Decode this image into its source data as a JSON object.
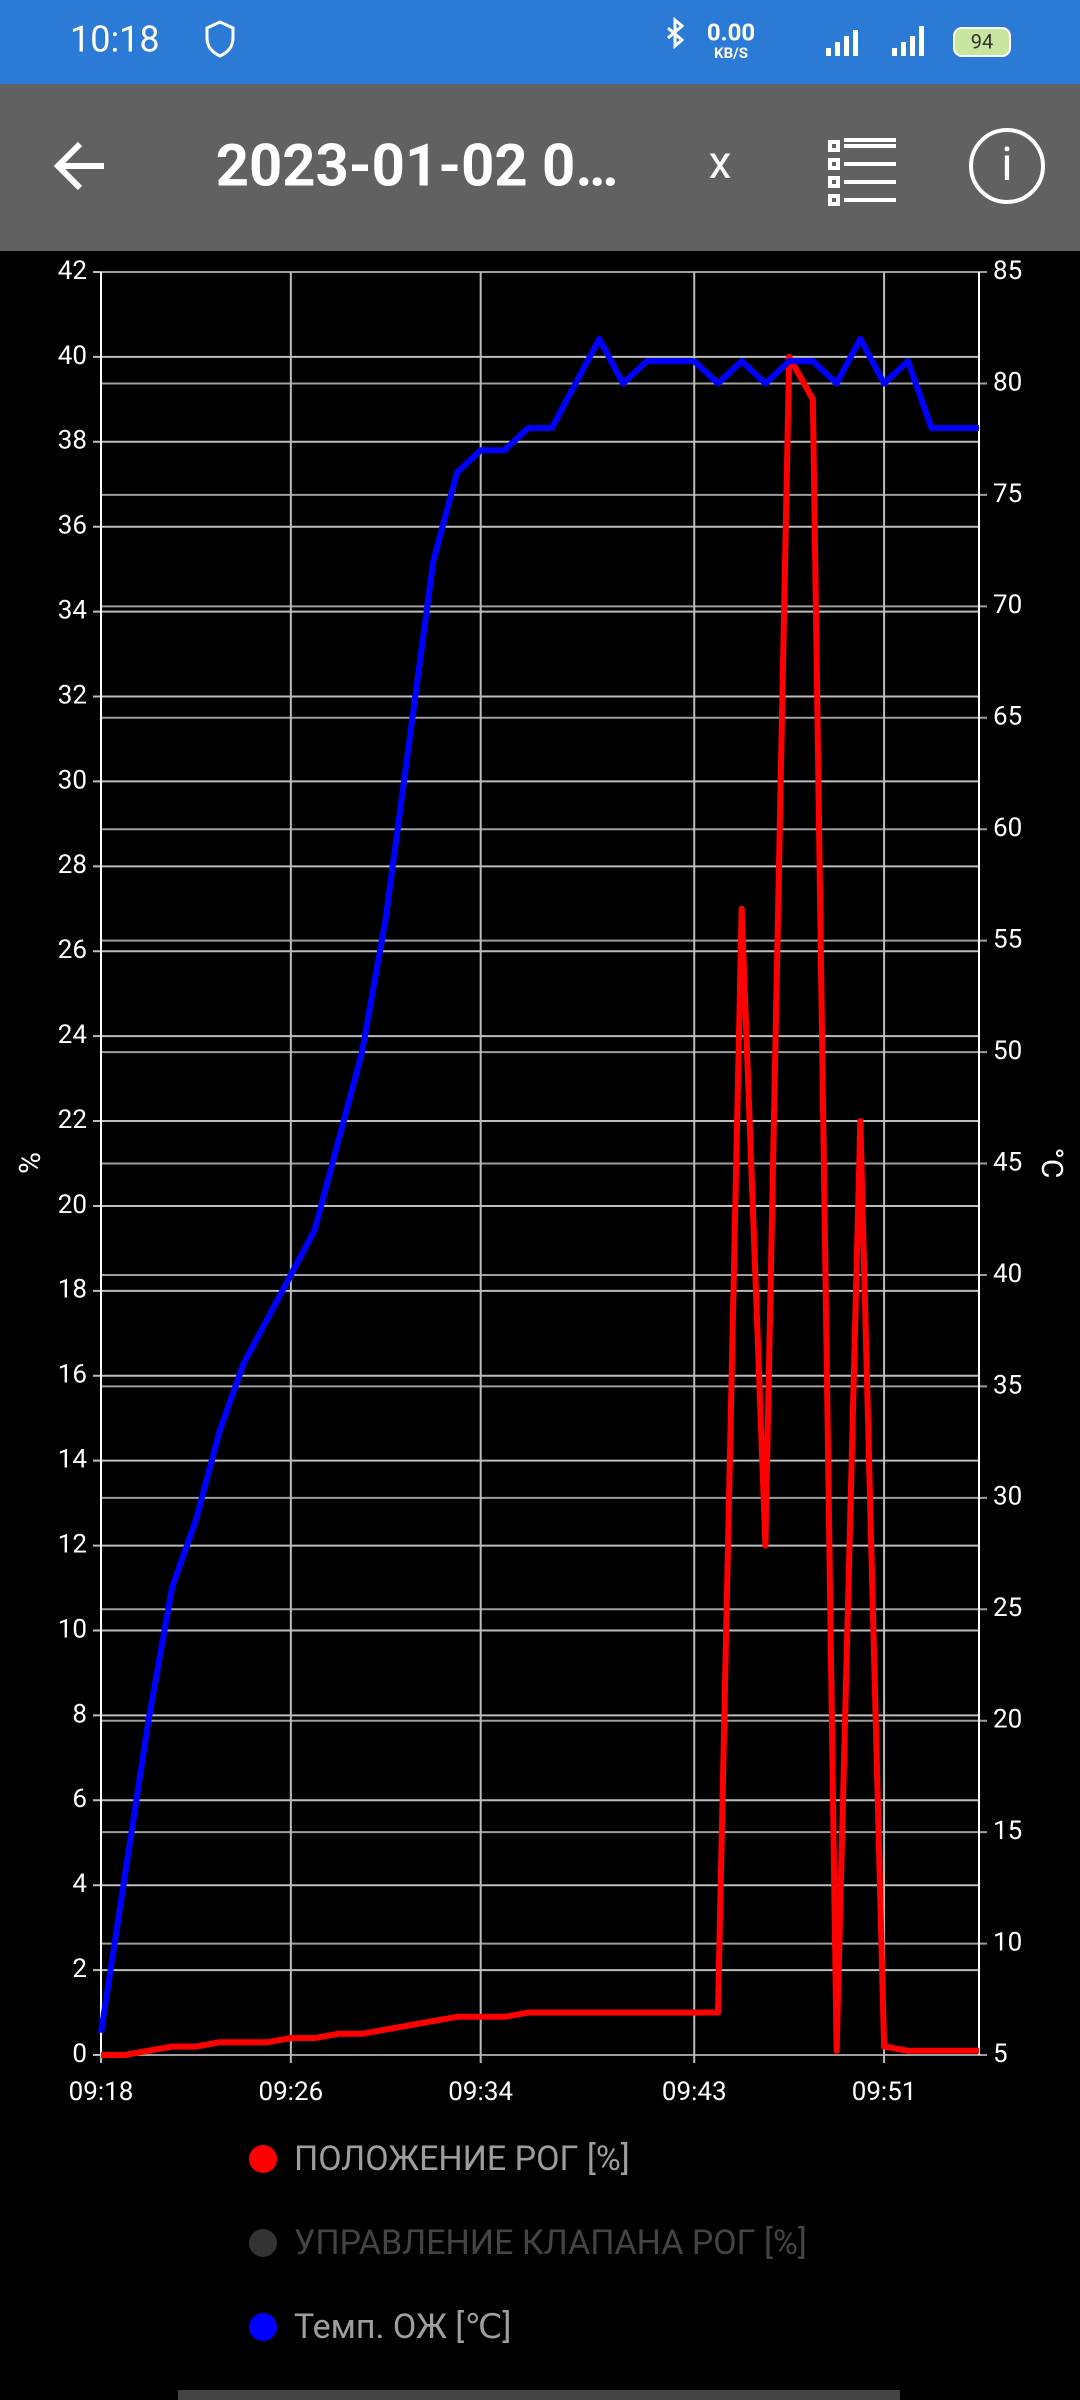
{
  "status_bar": {
    "time": "10:18",
    "speed": "0.00",
    "speed_unit": "KB/S",
    "battery": "94"
  },
  "app_bar": {
    "title": "2023-01-02 0…",
    "close": "x"
  },
  "chart_data": {
    "type": "line",
    "x": [
      "09:18",
      "09:19",
      "09:20",
      "09:21",
      "09:22",
      "09:23",
      "09:24",
      "09:25",
      "09:26",
      "09:27",
      "09:28",
      "09:29",
      "09:30",
      "09:31",
      "09:32",
      "09:33",
      "09:34",
      "09:35",
      "09:36",
      "09:37",
      "09:38",
      "09:39",
      "09:40",
      "09:41",
      "09:42",
      "09:43",
      "09:44",
      "09:45",
      "09:46",
      "09:47",
      "09:48",
      "09:49",
      "09:50",
      "09:51",
      "09:52",
      "09:53",
      "09:54",
      "09:55"
    ],
    "xlim": [
      "09:18",
      "09:55"
    ],
    "xticks": [
      "09:18",
      "09:26",
      "09:34",
      "09:43",
      "09:51"
    ],
    "ylabel": "%",
    "y2label": "°C",
    "ylim": [
      0,
      42
    ],
    "yticks": [
      0,
      2,
      4,
      6,
      8,
      10,
      12,
      14,
      16,
      18,
      20,
      22,
      24,
      26,
      28,
      30,
      32,
      34,
      36,
      38,
      40,
      42
    ],
    "y2lim": [
      5,
      85
    ],
    "y2ticks": [
      5,
      10,
      15,
      20,
      25,
      30,
      35,
      40,
      45,
      50,
      55,
      60,
      65,
      70,
      75,
      80,
      85
    ],
    "grid": true,
    "series": [
      {
        "name": "ПОЛОЖЕНИЕ РОГ [%]",
        "color": "#ff0000",
        "values": [
          0,
          0,
          0.1,
          0.2,
          0.2,
          0.3,
          0.3,
          0.3,
          0.4,
          0.4,
          0.5,
          0.5,
          0.6,
          0.7,
          0.8,
          0.9,
          0.9,
          0.9,
          1,
          1,
          1,
          1,
          1,
          1,
          1,
          1,
          1,
          27,
          12,
          40,
          39,
          0.1,
          22,
          0.2,
          0.1,
          0.1,
          0.1,
          0.1
        ]
      },
      {
        "name": "УПРАВЛЕНИЕ КЛАПАНА РОГ [%]",
        "color": "#333333",
        "values": [
          null,
          null,
          null,
          null,
          null,
          null,
          null,
          null,
          null,
          null,
          null,
          null,
          null,
          null,
          null,
          null,
          null,
          null,
          null,
          null,
          null,
          null,
          null,
          null,
          null,
          null,
          null,
          null,
          null,
          null,
          null,
          null,
          null,
          null,
          null,
          null,
          null,
          null
        ]
      },
      {
        "name": "Темп. ОЖ [℃]",
        "color": "#0000ff",
        "axis": "y2",
        "values": [
          6,
          13,
          20,
          26,
          29,
          33,
          36,
          38,
          40,
          42,
          46,
          50,
          56,
          64,
          72,
          76,
          77,
          77,
          78,
          78,
          80,
          82,
          80,
          81,
          81,
          81,
          80,
          81,
          80,
          81,
          81,
          80,
          82,
          80,
          81,
          78,
          78,
          78
        ]
      }
    ]
  }
}
